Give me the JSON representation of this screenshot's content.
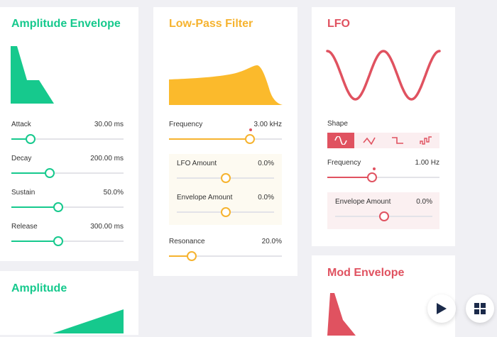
{
  "colors": {
    "green": "#16c98d",
    "orange": "#f6b32f",
    "red": "#e05260",
    "navy": "#1b2a4a"
  },
  "amp_env": {
    "title": "Amplitude Envelope",
    "params": [
      {
        "label": "Attack",
        "value": "30.00 ms",
        "fraction": 0.17
      },
      {
        "label": "Decay",
        "value": "200.00 ms",
        "fraction": 0.34
      },
      {
        "label": "Sustain",
        "value": "50.0%",
        "fraction": 0.42
      },
      {
        "label": "Release",
        "value": "300.00 ms",
        "fraction": 0.42
      }
    ]
  },
  "filter": {
    "title": "Low-Pass Filter",
    "frequency": {
      "label": "Frequency",
      "value": "3.00 kHz",
      "fraction": 0.72
    },
    "lfo_amount": {
      "label": "LFO Amount",
      "value": "0.0%",
      "fraction": 0.5
    },
    "env_amount": {
      "label": "Envelope Amount",
      "value": "0.0%",
      "fraction": 0.5
    },
    "resonance": {
      "label": "Resonance",
      "value": "20.0%",
      "fraction": 0.2
    }
  },
  "lfo": {
    "title": "LFO",
    "shape_label": "Shape",
    "shapes": [
      "sine-icon",
      "triangle-icon",
      "square-icon",
      "random-icon"
    ],
    "selected_shape": 0,
    "frequency": {
      "label": "Frequency",
      "value": "1.00 Hz",
      "fraction": 0.4
    },
    "env_amount": {
      "label": "Envelope Amount",
      "value": "0.0%",
      "fraction": 0.5
    }
  },
  "amplitude": {
    "title": "Amplitude"
  },
  "mod_env": {
    "title": "Mod Envelope"
  },
  "controls": {
    "play_icon": "play-icon",
    "grid_icon": "grid-icon"
  }
}
